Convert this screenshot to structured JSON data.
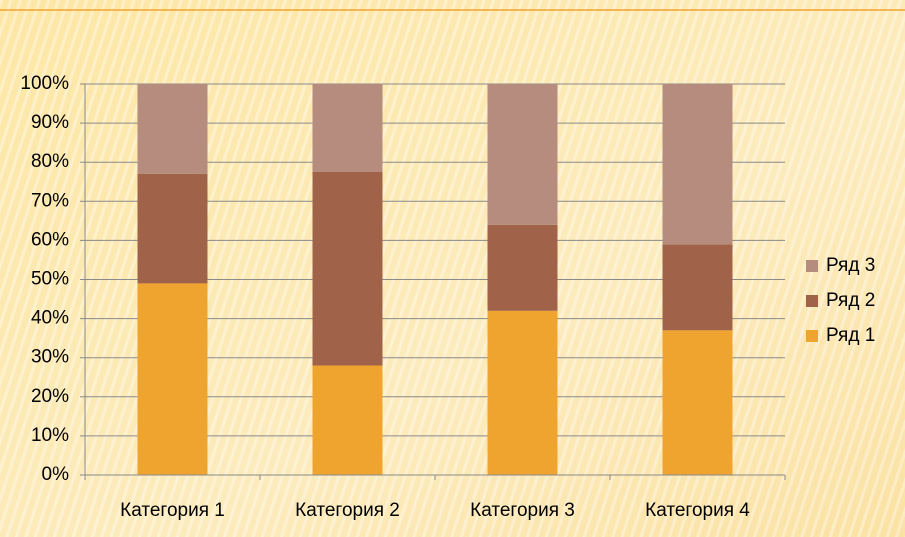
{
  "chart_data": {
    "type": "stacked-bar",
    "categories": [
      "Категория 1",
      "Категория 2",
      "Категория 3",
      "Категория 4"
    ],
    "series": [
      {
        "name": "Ряд 1",
        "color": "#f0a430",
        "values": [
          49,
          28,
          42,
          37
        ]
      },
      {
        "name": "Ряд 2",
        "color": "#a0634a",
        "values": [
          28,
          49.5,
          22,
          22
        ]
      },
      {
        "name": "Ряд 3",
        "color": "#b58c7e",
        "values": [
          23,
          22.5,
          36,
          41
        ]
      }
    ],
    "ylim": [
      0,
      100
    ],
    "yticks": [
      {
        "value": 0,
        "label": "0%"
      },
      {
        "value": 10,
        "label": "10%"
      },
      {
        "value": 20,
        "label": "20%"
      },
      {
        "value": 30,
        "label": "30%"
      },
      {
        "value": 40,
        "label": "40%"
      },
      {
        "value": 50,
        "label": "50%"
      },
      {
        "value": 60,
        "label": "60%"
      },
      {
        "value": 70,
        "label": "70%"
      },
      {
        "value": 80,
        "label": "80%"
      },
      {
        "value": 90,
        "label": "90%"
      },
      {
        "value": 100,
        "label": "100%"
      }
    ],
    "grid": true,
    "legend": "right"
  }
}
